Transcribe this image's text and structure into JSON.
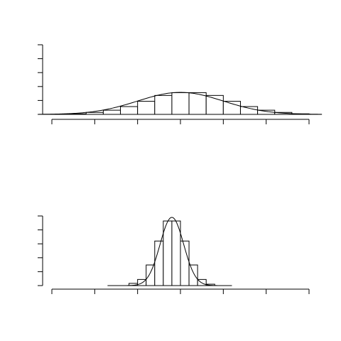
{
  "chart_data": [
    {
      "type": "histogram",
      "title": "",
      "xlabel": "",
      "ylabel": "",
      "xlim": [
        -6,
        6
      ],
      "ylim": [
        0,
        0.25
      ],
      "x_ticks": [
        -6,
        -4,
        -2,
        0,
        2,
        4,
        6
      ],
      "y_ticks": [
        0,
        0.05,
        0.1,
        0.15,
        0.2,
        0.25
      ],
      "tick_labels_shown": false,
      "bin_width": 0.8,
      "bins": [
        {
          "start": -6.0,
          "end": -5.2,
          "value": 0.0
        },
        {
          "start": -5.2,
          "end": -4.4,
          "value": 0.002
        },
        {
          "start": -4.4,
          "end": -3.6,
          "value": 0.007
        },
        {
          "start": -3.6,
          "end": -2.8,
          "value": 0.015
        },
        {
          "start": -2.8,
          "end": -2.0,
          "value": 0.028
        },
        {
          "start": -2.0,
          "end": -1.2,
          "value": 0.047
        },
        {
          "start": -1.2,
          "end": -0.4,
          "value": 0.068
        },
        {
          "start": -0.4,
          "end": 0.4,
          "value": 0.078
        },
        {
          "start": 0.4,
          "end": 1.2,
          "value": 0.078
        },
        {
          "start": 1.2,
          "end": 2.0,
          "value": 0.068
        },
        {
          "start": 2.0,
          "end": 2.8,
          "value": 0.047
        },
        {
          "start": 2.8,
          "end": 3.6,
          "value": 0.028
        },
        {
          "start": 3.6,
          "end": 4.4,
          "value": 0.015
        },
        {
          "start": 4.4,
          "end": 5.2,
          "value": 0.007
        },
        {
          "start": 5.2,
          "end": 6.0,
          "value": 0.002
        }
      ],
      "density_curve": {
        "distribution": "normal",
        "mean": 0,
        "sd": 2,
        "peak": 0.079
      }
    },
    {
      "type": "histogram",
      "title": "",
      "xlabel": "",
      "ylabel": "",
      "xlim": [
        -6,
        6
      ],
      "ylim": [
        0,
        0.25
      ],
      "x_ticks": [
        -6,
        -4,
        -2,
        0,
        2,
        4,
        6
      ],
      "y_ticks": [
        0,
        0.05,
        0.1,
        0.15,
        0.2,
        0.25
      ],
      "tick_labels_shown": false,
      "bin_width": 0.4,
      "bins": [
        {
          "start": -2.4,
          "end": -2.0,
          "value": 0.008
        },
        {
          "start": -2.0,
          "end": -1.6,
          "value": 0.022
        },
        {
          "start": -1.6,
          "end": -1.2,
          "value": 0.074
        },
        {
          "start": -1.2,
          "end": -0.8,
          "value": 0.16
        },
        {
          "start": -0.8,
          "end": -0.4,
          "value": 0.232
        },
        {
          "start": -0.4,
          "end": 0.0,
          "value": 0.232
        },
        {
          "start": 0.0,
          "end": 0.4,
          "value": 0.16
        },
        {
          "start": 0.4,
          "end": 0.8,
          "value": 0.074
        },
        {
          "start": 0.8,
          "end": 1.2,
          "value": 0.022
        },
        {
          "start": 1.2,
          "end": 1.6,
          "value": 0.005
        }
      ],
      "density_curve": {
        "distribution": "normal",
        "mean": -0.4,
        "sd": 0.55,
        "peak": 0.245
      },
      "baseline_range": [
        -3.4,
        2.4
      ]
    }
  ]
}
